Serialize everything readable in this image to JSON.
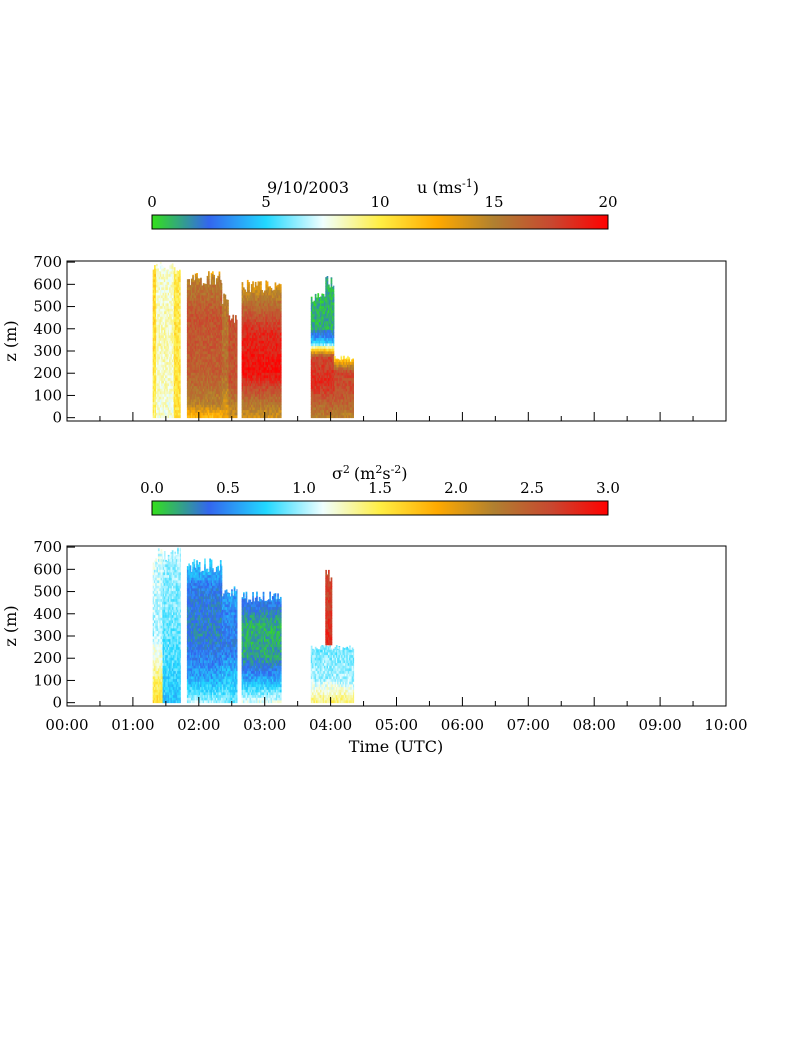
{
  "colors": {
    "scale": [
      "#33e01a",
      "#3366ee",
      "#22d8ff",
      "#f0ffff",
      "#ffee44",
      "#ffaa00",
      "#b08030",
      "#c84830",
      "#ff0000"
    ],
    "frame": "#000000",
    "background": "#ffffff"
  },
  "date_label": "9/10/2003",
  "chart_data": [
    {
      "type": "heatmap",
      "colorbar": {
        "label_main": "u (ms",
        "label_sup": "-1",
        "label_end": ")",
        "ticks": [
          "0",
          "5",
          "10",
          "15",
          "20"
        ],
        "range": [
          0,
          20
        ]
      },
      "xlim": [
        0,
        10
      ],
      "ylim": [
        -15,
        705
      ],
      "ylabel": "z (m)",
      "y_ticks": [
        "0",
        "100",
        "200",
        "300",
        "400",
        "500",
        "600",
        "700"
      ],
      "y_tick_values": [
        0,
        100,
        200,
        300,
        400,
        500,
        600,
        700
      ],
      "blocks": [
        {
          "t0": 1.3,
          "t1": 1.35,
          "zmax": 690,
          "levels": [
            {
              "z": 0,
              "v": 9.5
            },
            {
              "z": 300,
              "v": 10.5
            },
            {
              "z": 690,
              "v": 11
            }
          ]
        },
        {
          "t0": 1.35,
          "t1": 1.62,
          "zmax": 700,
          "levels": [
            {
              "z": 0,
              "v": 8
            },
            {
              "z": 350,
              "v": 8.5
            },
            {
              "z": 700,
              "v": 8
            }
          ]
        },
        {
          "t0": 1.62,
          "t1": 1.72,
          "zmax": 700,
          "levels": [
            {
              "z": 0,
              "v": 10.5
            },
            {
              "z": 700,
              "v": 10
            }
          ]
        },
        {
          "t0": 1.82,
          "t1": 2.35,
          "zmax": 660,
          "levels": [
            {
              "z": 0,
              "v": 12
            },
            {
              "z": 60,
              "v": 15
            },
            {
              "z": 200,
              "v": 16.5
            },
            {
              "z": 450,
              "v": 17
            },
            {
              "z": 620,
              "v": 15
            },
            {
              "z": 660,
              "v": 12
            }
          ]
        },
        {
          "t0": 2.35,
          "t1": 2.45,
          "zmax": 560,
          "levels": [
            {
              "z": 0,
              "v": 13
            },
            {
              "z": 200,
              "v": 16
            },
            {
              "z": 560,
              "v": 15
            }
          ]
        },
        {
          "t0": 2.45,
          "t1": 2.58,
          "zmax": 470,
          "levels": [
            {
              "z": 0,
              "v": 14
            },
            {
              "z": 150,
              "v": 17
            },
            {
              "z": 470,
              "v": 17
            }
          ]
        },
        {
          "t0": 2.65,
          "t1": 3.25,
          "zmax": 620,
          "levels": [
            {
              "z": 0,
              "v": 14
            },
            {
              "z": 80,
              "v": 16
            },
            {
              "z": 200,
              "v": 19.5
            },
            {
              "z": 380,
              "v": 18.5
            },
            {
              "z": 500,
              "v": 16
            },
            {
              "z": 620,
              "v": 13
            }
          ]
        },
        {
          "t0": 3.7,
          "t1": 4.05,
          "zmax": 560,
          "levels": [
            {
              "z": 0,
              "v": 15
            },
            {
              "z": 150,
              "v": 18.5
            },
            {
              "z": 270,
              "v": 17.5
            },
            {
              "z": 330,
              "v": 5
            },
            {
              "z": 400,
              "v": 1
            },
            {
              "z": 560,
              "v": 1
            }
          ]
        },
        {
          "t0": 3.92,
          "t1": 4.05,
          "zmax": 650,
          "levels": [
            {
              "z": 400,
              "v": 1
            },
            {
              "z": 650,
              "v": 1
            }
          ]
        },
        {
          "t0": 4.05,
          "t1": 4.35,
          "zmax": 280,
          "levels": [
            {
              "z": 0,
              "v": 15
            },
            {
              "z": 100,
              "v": 17
            },
            {
              "z": 200,
              "v": 17.5
            },
            {
              "z": 280,
              "v": 9
            }
          ]
        }
      ]
    },
    {
      "type": "heatmap",
      "colorbar": {
        "label_main": "σ",
        "label_sup": "2",
        "label_units": "(m",
        "label_units_sup": "2",
        "label_units_mid": "s",
        "label_units_sup2": "-2",
        "label_end": ")",
        "ticks": [
          "0.0",
          "0.5",
          "1.0",
          "1.5",
          "2.0",
          "2.5",
          "3.0"
        ],
        "range": [
          0,
          3
        ]
      },
      "xlim": [
        0,
        10
      ],
      "ylim": [
        -15,
        705
      ],
      "xlabel": "Time (UTC)",
      "ylabel": "z (m)",
      "x_ticks": [
        "00:00",
        "01:00",
        "02:00",
        "03:00",
        "04:00",
        "05:00",
        "06:00",
        "07:00",
        "08:00",
        "09:00",
        "10:00"
      ],
      "y_ticks": [
        "0",
        "100",
        "200",
        "300",
        "400",
        "500",
        "600",
        "700"
      ],
      "y_tick_values": [
        0,
        100,
        200,
        300,
        400,
        500,
        600,
        700
      ],
      "blocks": [
        {
          "t0": 1.3,
          "t1": 1.45,
          "zmax": 700,
          "levels": [
            {
              "z": 0,
              "v": 1.6
            },
            {
              "z": 300,
              "v": 1.0
            },
            {
              "z": 700,
              "v": 1.1
            }
          ]
        },
        {
          "t0": 1.45,
          "t1": 1.72,
          "zmax": 700,
          "levels": [
            {
              "z": 0,
              "v": 0.7
            },
            {
              "z": 350,
              "v": 0.9
            },
            {
              "z": 700,
              "v": 1.0
            }
          ]
        },
        {
          "t0": 1.82,
          "t1": 2.35,
          "zmax": 650,
          "levels": [
            {
              "z": 0,
              "v": 1.0
            },
            {
              "z": 100,
              "v": 0.6
            },
            {
              "z": 300,
              "v": 0.3
            },
            {
              "z": 500,
              "v": 0.4
            },
            {
              "z": 650,
              "v": 0.8
            }
          ]
        },
        {
          "t0": 2.35,
          "t1": 2.58,
          "zmax": 530,
          "levels": [
            {
              "z": 0,
              "v": 0.9
            },
            {
              "z": 250,
              "v": 0.4
            },
            {
              "z": 530,
              "v": 0.6
            }
          ]
        },
        {
          "t0": 2.65,
          "t1": 3.25,
          "zmax": 500,
          "levels": [
            {
              "z": 0,
              "v": 1.1
            },
            {
              "z": 100,
              "v": 0.6
            },
            {
              "z": 200,
              "v": 0.2
            },
            {
              "z": 350,
              "v": 0.15
            },
            {
              "z": 500,
              "v": 0.6
            }
          ]
        },
        {
          "t0": 3.7,
          "t1": 4.35,
          "zmax": 260,
          "levels": [
            {
              "z": 0,
              "v": 1.4
            },
            {
              "z": 100,
              "v": 1.0
            },
            {
              "z": 260,
              "v": 0.9
            }
          ]
        },
        {
          "t0": 3.92,
          "t1": 4.02,
          "zmax": 600,
          "levels": [
            {
              "z": 260,
              "v": 2.8
            },
            {
              "z": 600,
              "v": 2.6
            }
          ]
        }
      ]
    }
  ]
}
